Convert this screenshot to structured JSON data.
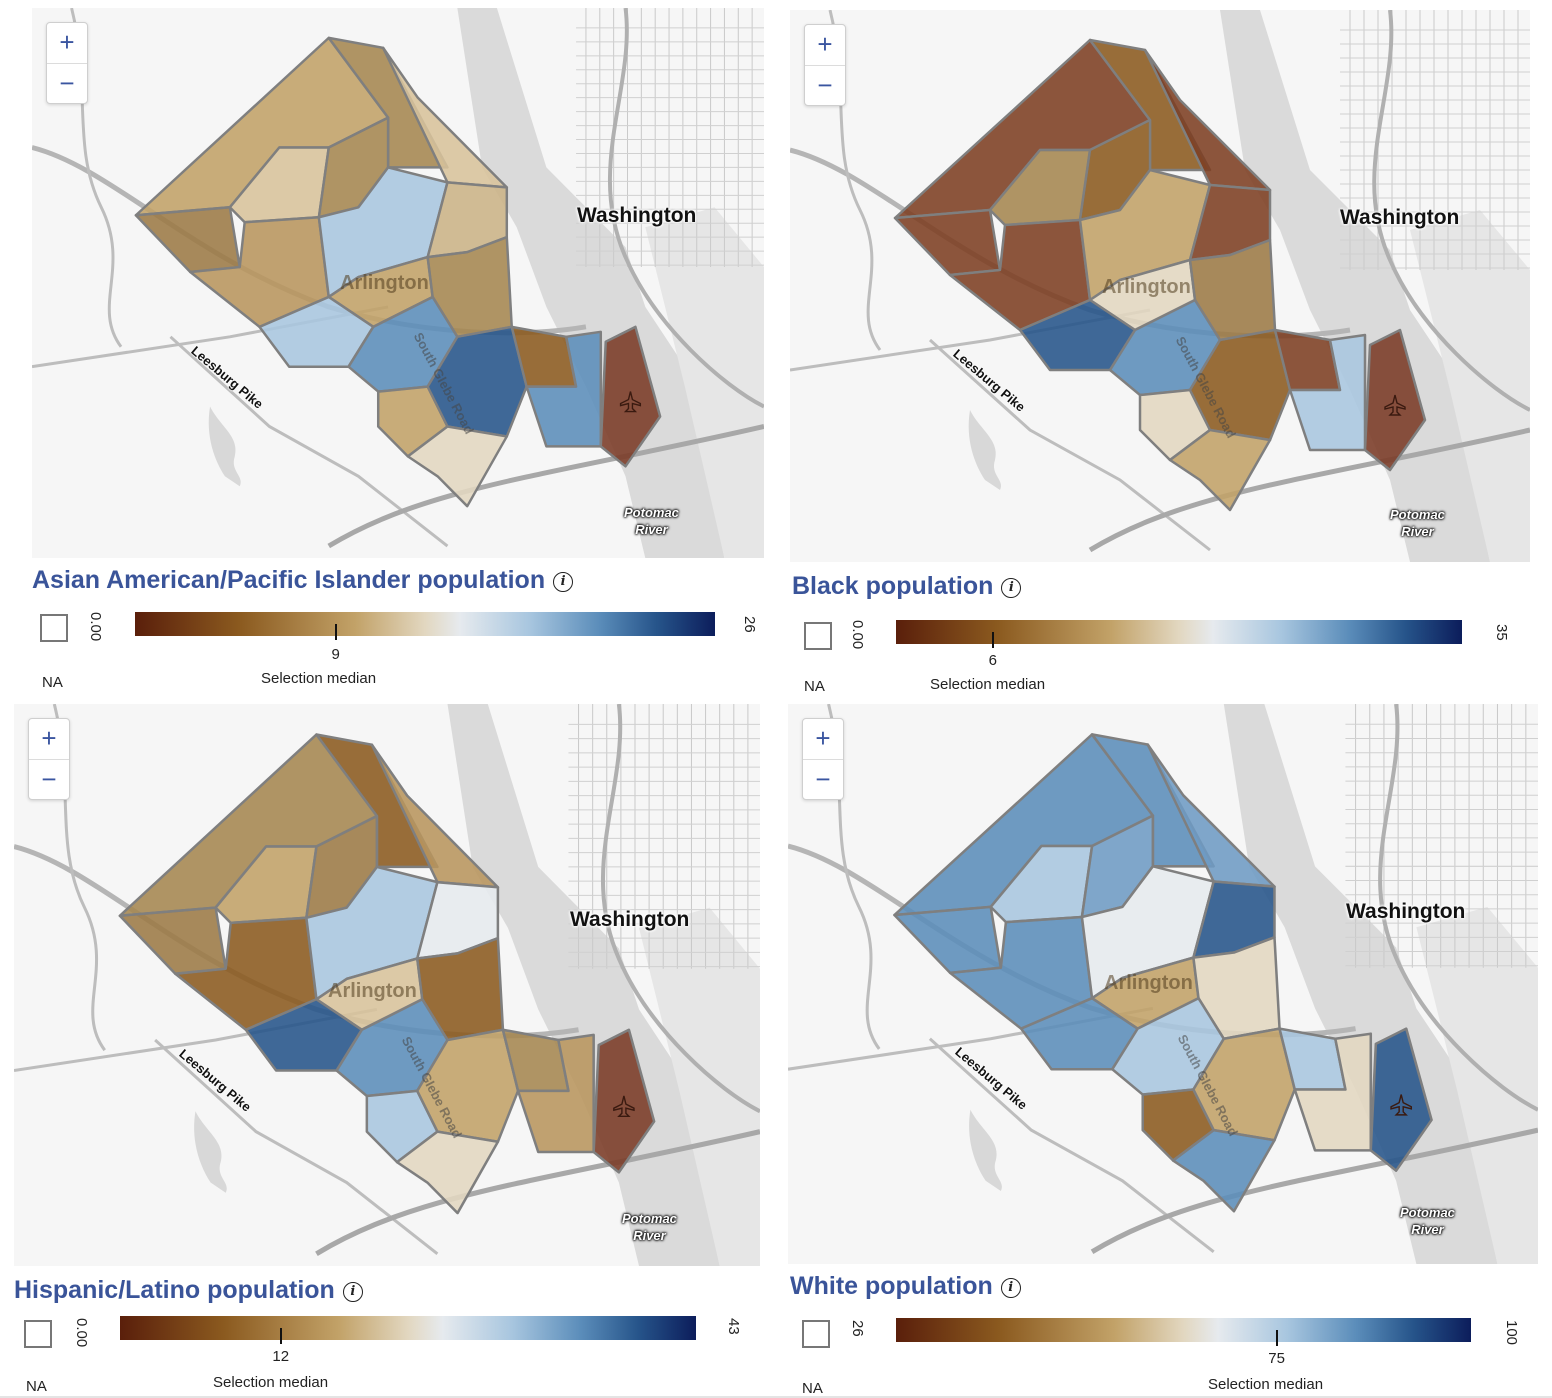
{
  "zoom": {
    "in_label": "+",
    "out_label": "−"
  },
  "labels": {
    "city": "Washington",
    "county": "Arlington",
    "road1": "Leesburg Pike",
    "road2": "South Glebe Road",
    "river_line1": "Potomac",
    "river_line2": "River",
    "na": "NA",
    "selection_median": "Selection median",
    "info": "i"
  },
  "legend_colors": [
    "#5a1f0b",
    "#8b5a1f",
    "#c2a268",
    "#e2d7c0",
    "#e6eaee",
    "#a8c6df",
    "#5b8dba",
    "#26548a",
    "#0c1d5b"
  ],
  "panels": [
    {
      "title": "Asian American/Pacific Islander population",
      "scale_min": "0.00",
      "scale_max": "26",
      "median_label": "9",
      "median_fraction": 0.346,
      "region_colors": [
        "#c2a268",
        "#a58650",
        "#d8c39b",
        "#9c7a45",
        "#d8c39b",
        "#a58650",
        "#b8955d",
        "#a8c6df",
        "#cbb386",
        "#c2a268",
        "#a58650",
        "#a8c6df",
        "#5b8dba",
        "#c2a268",
        "#26548a",
        "#e2d7c0",
        "#8b5a1f",
        "#5b8dba",
        "#7a3a25"
      ]
    },
    {
      "title": "Black population",
      "scale_min": "0.00",
      "scale_max": "35",
      "median_label": "6",
      "median_fraction": 0.171,
      "region_colors": [
        "#7d3f22",
        "#8b5a1f",
        "#7d3f22",
        "#7d3f22",
        "#a58650",
        "#8b5a1f",
        "#7d3f22",
        "#c2a268",
        "#7d3f22",
        "#e2d7c0",
        "#9c7a45",
        "#26548a",
        "#5b8dba",
        "#e2d7c0",
        "#8b5a1f",
        "#c2a268",
        "#7d3f22",
        "#a8c6df",
        "#7a3a25"
      ]
    },
    {
      "title": "Hispanic/Latino population",
      "scale_min": "0.00",
      "scale_max": "43",
      "median_label": "12",
      "median_fraction": 0.279,
      "region_colors": [
        "#a58650",
        "#8b5a1f",
        "#b8955d",
        "#9c7a45",
        "#c2a268",
        "#9c7a45",
        "#8b5a1f",
        "#a8c6df",
        "#e6eaee",
        "#d8c39b",
        "#8b5a1f",
        "#26548a",
        "#5b8dba",
        "#a8c6df",
        "#c2a268",
        "#e2d7c0",
        "#a58650",
        "#b8955d",
        "#7a3a25"
      ]
    },
    {
      "title": "White population",
      "scale_min": "26",
      "scale_max": "100",
      "median_label": "75",
      "median_fraction": 0.662,
      "region_colors": [
        "#5b8dba",
        "#5b8dba",
        "#6e9bc4",
        "#5b8dba",
        "#a8c6df",
        "#6e9bc4",
        "#5b8dba",
        "#e6eaee",
        "#26548a",
        "#c2a268",
        "#e2d7c0",
        "#5b8dba",
        "#a8c6df",
        "#8b5a1f",
        "#c2a268",
        "#5b8dba",
        "#a8c6df",
        "#e2d7c0",
        "#26548a"
      ]
    }
  ]
}
